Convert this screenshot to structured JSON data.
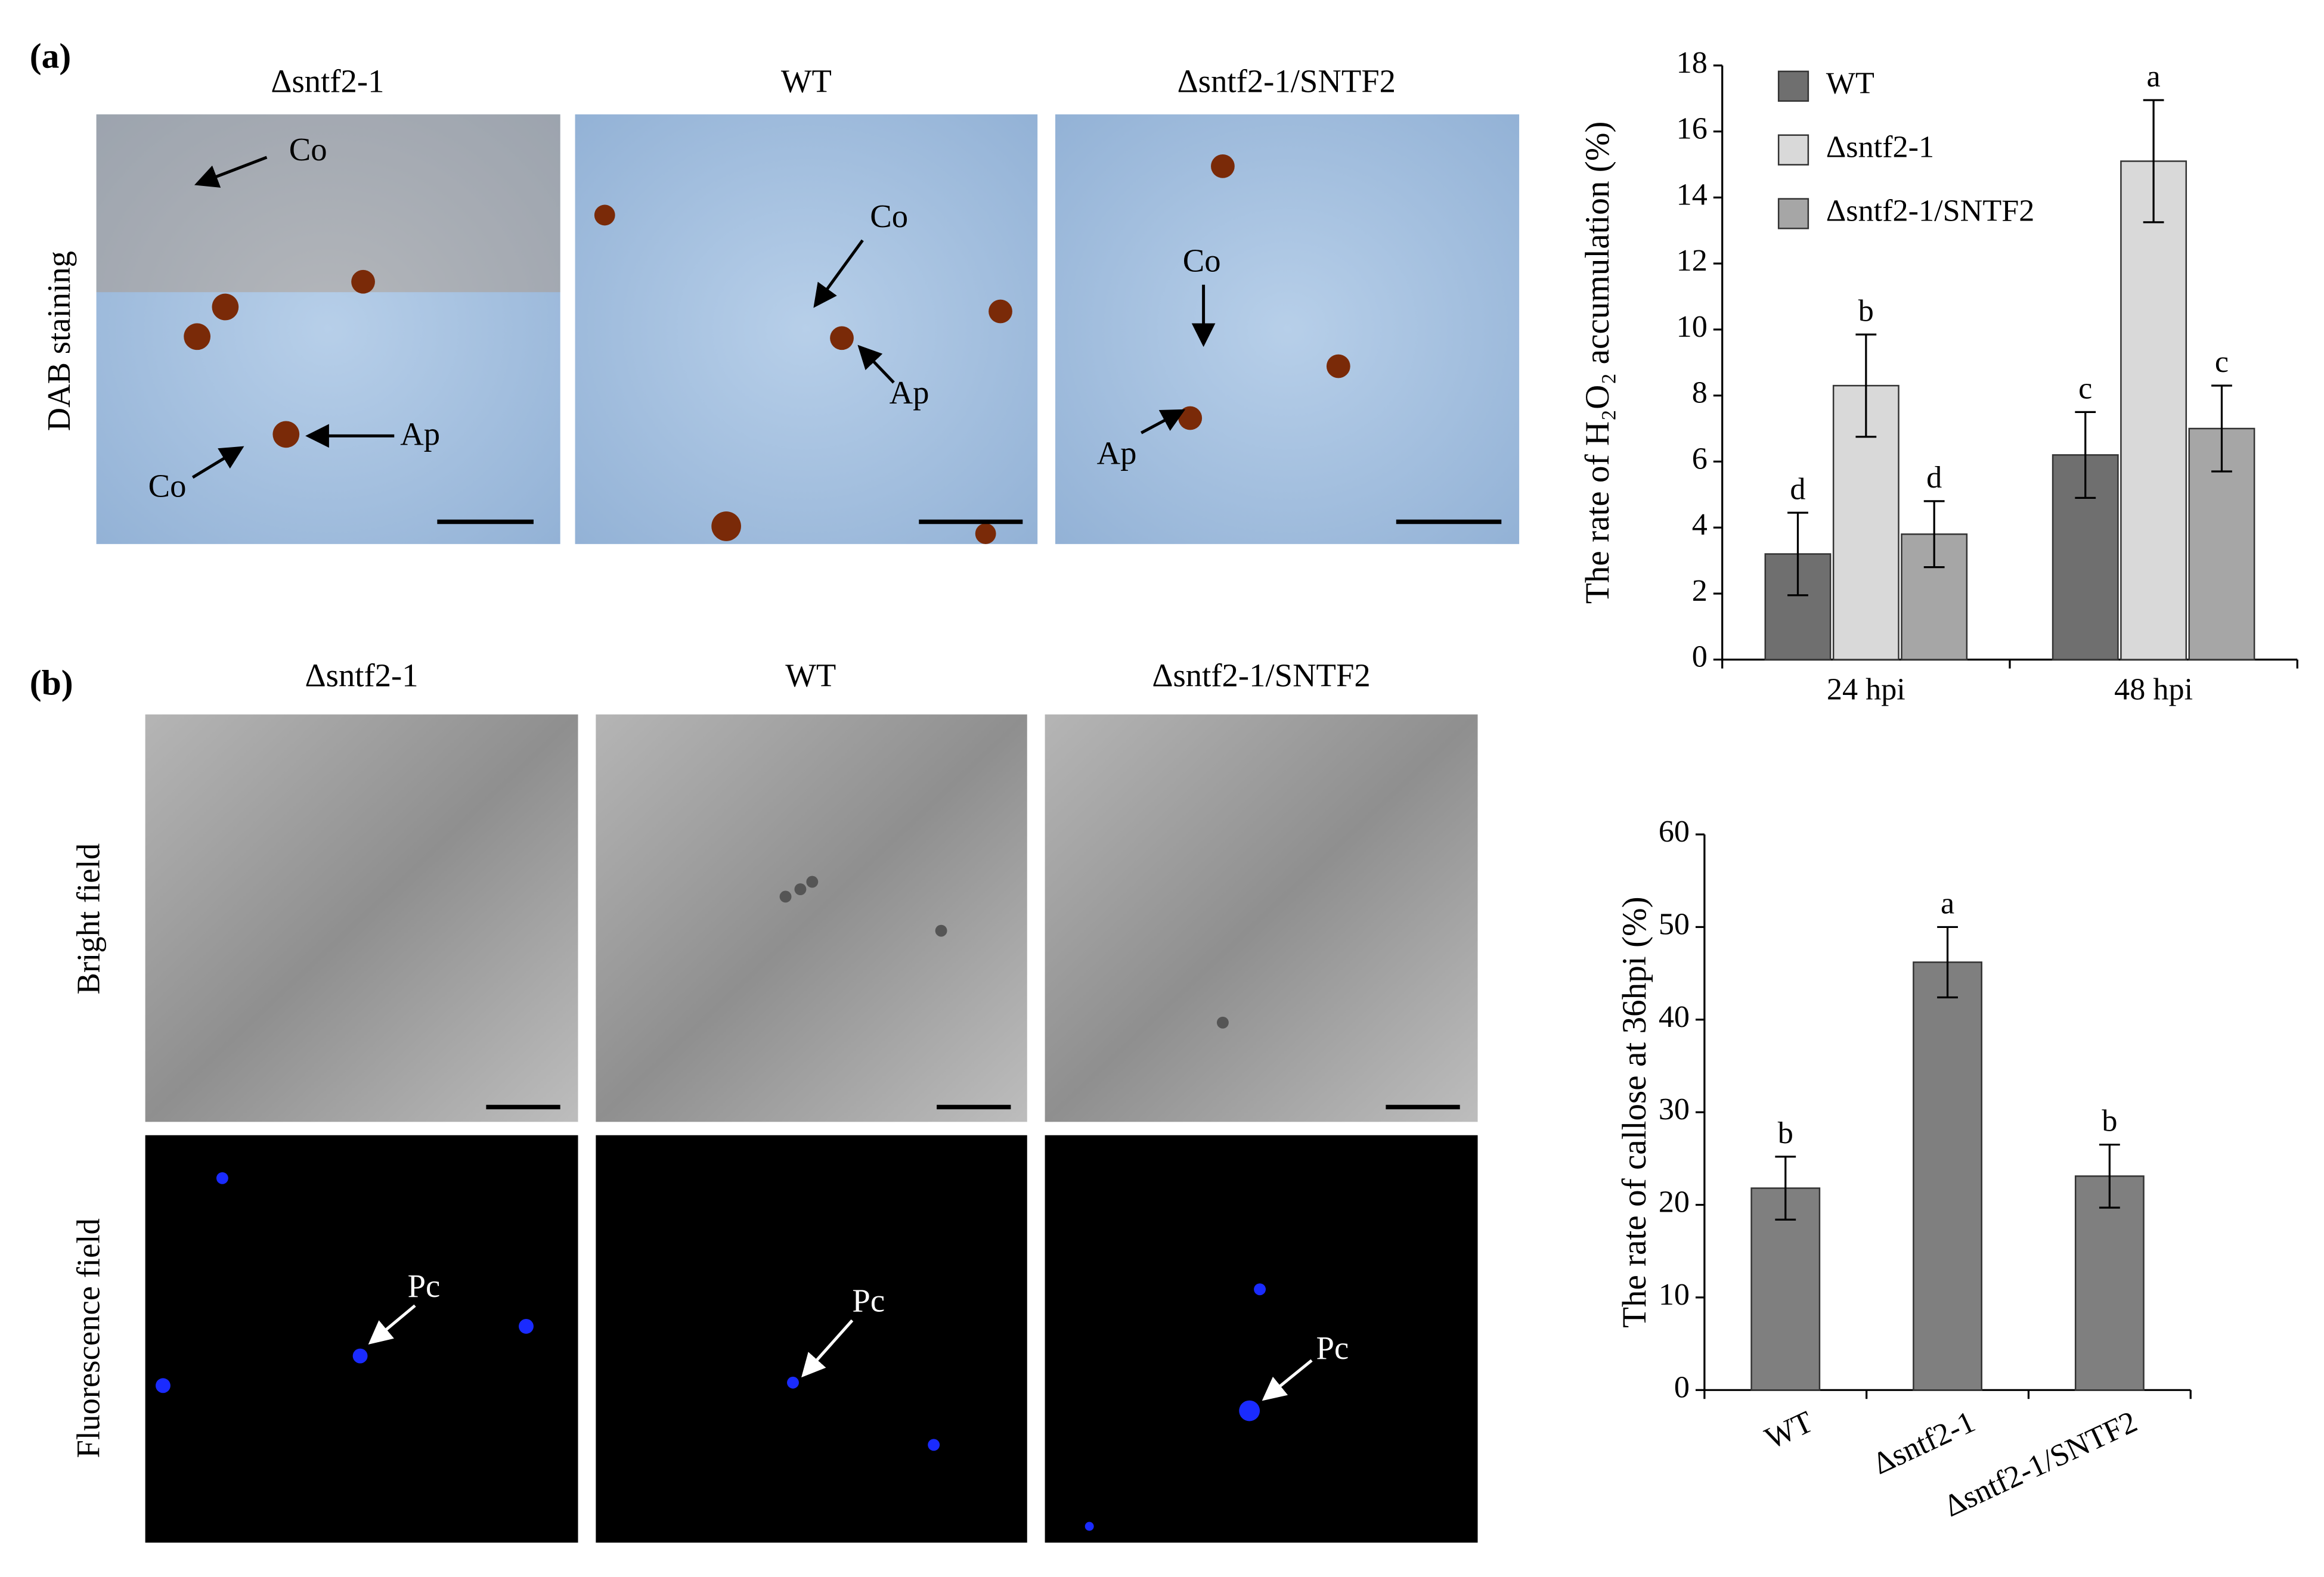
{
  "figure": {
    "panel_a": "(a)",
    "panel_b": "(b)",
    "columns": [
      "Δsntf2-1",
      "WT",
      "Δsntf2-1/SNTF2"
    ],
    "rows": [
      "DAB staining",
      "Bright field",
      "Fluorescence field"
    ],
    "arrows": [
      "Co",
      "Ap",
      "Co",
      "Co",
      "Ap",
      "Co",
      "Ap",
      "Pc",
      "Pc",
      "Pc"
    ]
  },
  "chart_data": [
    {
      "type": "bar",
      "ylabel": "The rate of H₂O₂ accumulation (%)",
      "categories": [
        "24 hpi",
        "48 hpi"
      ],
      "series": [
        {
          "name": "WT",
          "color": "#6f6f6f",
          "values": [
            3.2,
            6.2
          ],
          "errors": [
            1.25,
            1.3
          ],
          "letters": [
            "d",
            "c"
          ]
        },
        {
          "name": "Δsntf2-1",
          "color": "#d9d9d9",
          "values": [
            8.3,
            15.1
          ],
          "errors": [
            1.55,
            1.85
          ],
          "letters": [
            "b",
            "a"
          ]
        },
        {
          "name": "Δsntf2-1/SNTF2",
          "color": "#a6a6a6",
          "values": [
            3.8,
            7.0
          ],
          "errors": [
            1.0,
            1.3
          ],
          "letters": [
            "d",
            "c"
          ]
        }
      ],
      "ylim": [
        0,
        18
      ],
      "yticks": [
        0,
        2,
        4,
        6,
        8,
        10,
        12,
        14,
        16,
        18
      ],
      "legend": "top-left"
    },
    {
      "type": "bar",
      "ylabel": "The rate of callose at 36hpi (%)",
      "categories": [
        "WT",
        "Δsntf2-1",
        "Δsntf2-1/SNTF2"
      ],
      "values": [
        21.8,
        46.2,
        23.1
      ],
      "errors": [
        3.4,
        3.8,
        3.4
      ],
      "letters": [
        "b",
        "a",
        "b"
      ],
      "color": "#7f7f7f",
      "ylim": [
        0,
        60
      ],
      "yticks": [
        0,
        10,
        20,
        30,
        40,
        50,
        60
      ]
    }
  ]
}
